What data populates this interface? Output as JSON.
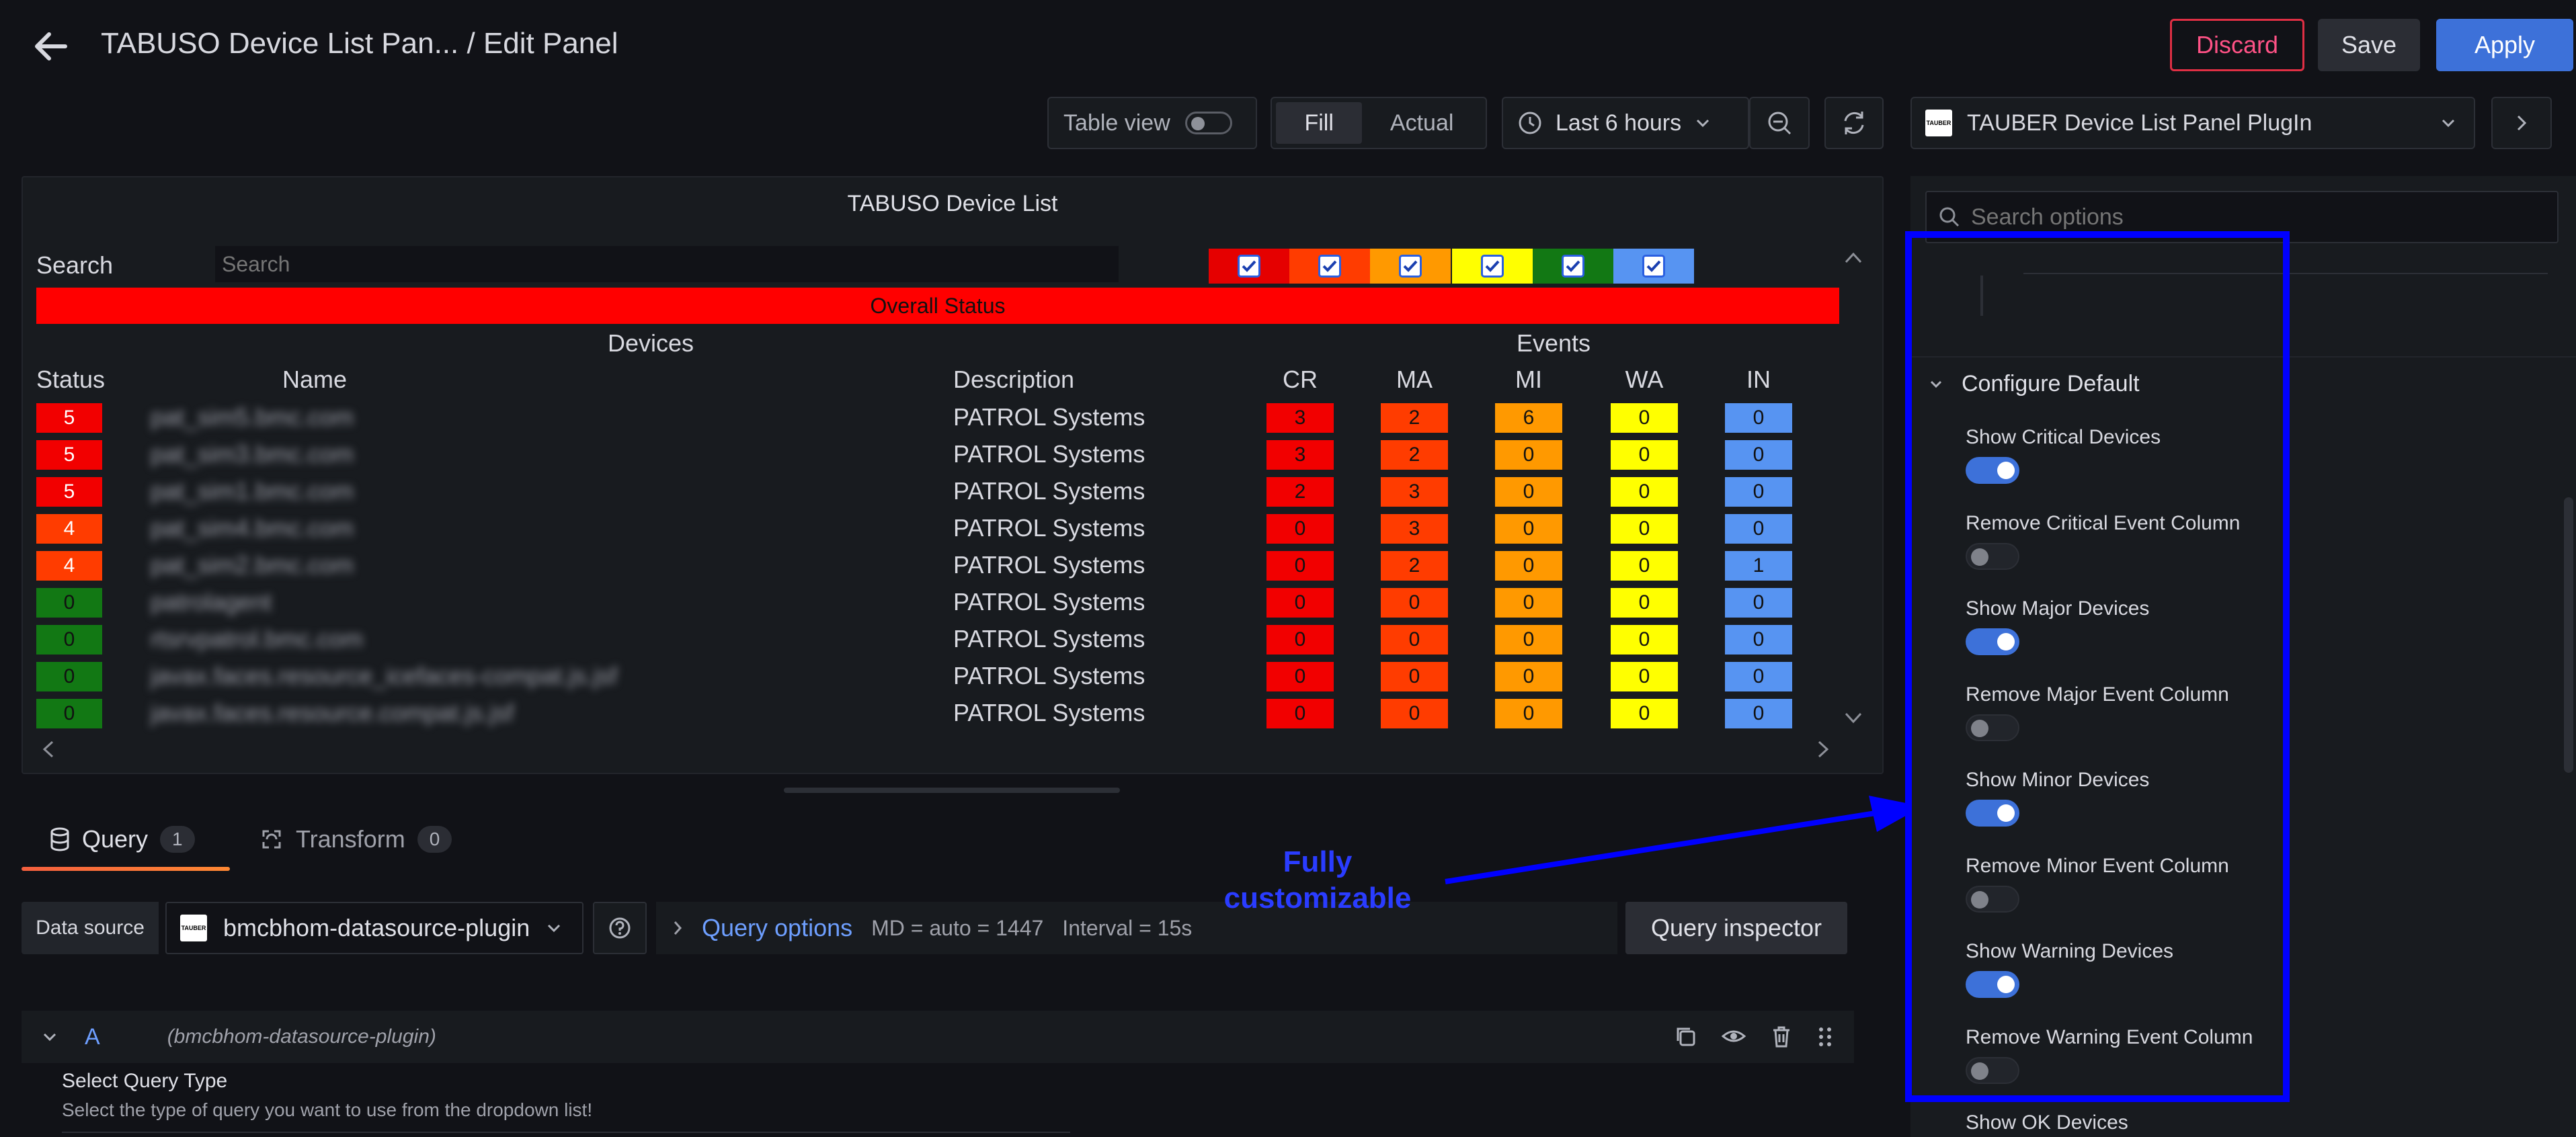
{
  "header": {
    "title": "TABUSO Device List Pan...",
    "subtitle": "/ Edit Panel",
    "discard": "Discard",
    "save": "Save",
    "apply": "Apply"
  },
  "toolbar": {
    "table_view": "Table view",
    "fill": "Fill",
    "actual": "Actual",
    "time_range": "Last 6 hours",
    "plugin": "TAUBER Device List Panel PlugIn"
  },
  "panel": {
    "title": "TABUSO Device List",
    "search_label": "Search",
    "search_placeholder": "Search",
    "overall_status": "Overall Status",
    "devices_header": "Devices",
    "events_header": "Events",
    "columns": [
      "Status",
      "Name",
      "Description",
      "CR",
      "MA",
      "MI",
      "WA",
      "IN"
    ],
    "filter_colors": [
      "#e50000",
      "#ff3c00",
      "#ff9900",
      "#ffff00",
      "#127814",
      "#5794f2"
    ],
    "status_colors": {
      "5": "#f20000",
      "4": "#ff3c00",
      "0": "#127814"
    },
    "event_colors": [
      "#f20000",
      "#ff3c00",
      "#ff9900",
      "#ffff00",
      "#5794f2"
    ],
    "rows": [
      {
        "status": "5",
        "name": "pat_sim5.bmc.com",
        "desc": "PATROL Systems",
        "ev": [
          "3",
          "2",
          "6",
          "0",
          "0"
        ]
      },
      {
        "status": "5",
        "name": "pat_sim3.bmc.com",
        "desc": "PATROL Systems",
        "ev": [
          "3",
          "2",
          "0",
          "0",
          "0"
        ]
      },
      {
        "status": "5",
        "name": "pat_sim1.bmc.com",
        "desc": "PATROL Systems",
        "ev": [
          "2",
          "3",
          "0",
          "0",
          "0"
        ]
      },
      {
        "status": "4",
        "name": "pat_sim4.bmc.com",
        "desc": "PATROL Systems",
        "ev": [
          "0",
          "3",
          "0",
          "0",
          "0"
        ]
      },
      {
        "status": "4",
        "name": "pat_sim2.bmc.com",
        "desc": "PATROL Systems",
        "ev": [
          "0",
          "2",
          "0",
          "0",
          "1"
        ]
      },
      {
        "status": "0",
        "name": "patrolagent",
        "desc": "PATROL Systems",
        "ev": [
          "0",
          "0",
          "0",
          "0",
          "0"
        ]
      },
      {
        "status": "0",
        "name": "rtsrvpatrol.bmc.com",
        "desc": "PATROL Systems",
        "ev": [
          "0",
          "0",
          "0",
          "0",
          "0"
        ]
      },
      {
        "status": "0",
        "name": "javax.faces.resource_icefaces-compat.js.jsf",
        "desc": "PATROL Systems",
        "ev": [
          "0",
          "0",
          "0",
          "0",
          "0"
        ]
      },
      {
        "status": "0",
        "name": "javax.faces.resource.compat.js.jsf",
        "desc": "PATROL Systems",
        "ev": [
          "0",
          "0",
          "0",
          "0",
          "0"
        ]
      }
    ]
  },
  "query": {
    "tab_query": "Query",
    "tab_query_count": "1",
    "tab_transform": "Transform",
    "tab_transform_count": "0",
    "datasource_label": "Data source",
    "datasource": "bmcbhom-datasource-plugin",
    "query_options": "Query options",
    "md": "MD = auto = 1447",
    "interval": "Interval = 15s",
    "inspector": "Query inspector",
    "row_letter": "A",
    "row_source": "(bmcbhom-datasource-plugin)",
    "select_type_label": "Select Query Type",
    "select_type_desc": "Select the type of query you want to use from the dropdown list!"
  },
  "annotation": {
    "line1": "Fully",
    "line2": "customizable",
    "color": "#0000ff"
  },
  "options": {
    "search_placeholder": "Search options",
    "section": "Configure Default",
    "items": [
      {
        "label": "Show Critical Devices",
        "on": true
      },
      {
        "label": "Remove Critical Event Column",
        "on": false
      },
      {
        "label": "Show Major Devices",
        "on": true
      },
      {
        "label": "Remove Major Event Column",
        "on": false
      },
      {
        "label": "Show Minor Devices",
        "on": true
      },
      {
        "label": "Remove Minor Event Column",
        "on": false
      },
      {
        "label": "Show Warning Devices",
        "on": true
      },
      {
        "label": "Remove Warning Event Column",
        "on": false
      }
    ],
    "last_label": "Show OK Devices"
  }
}
